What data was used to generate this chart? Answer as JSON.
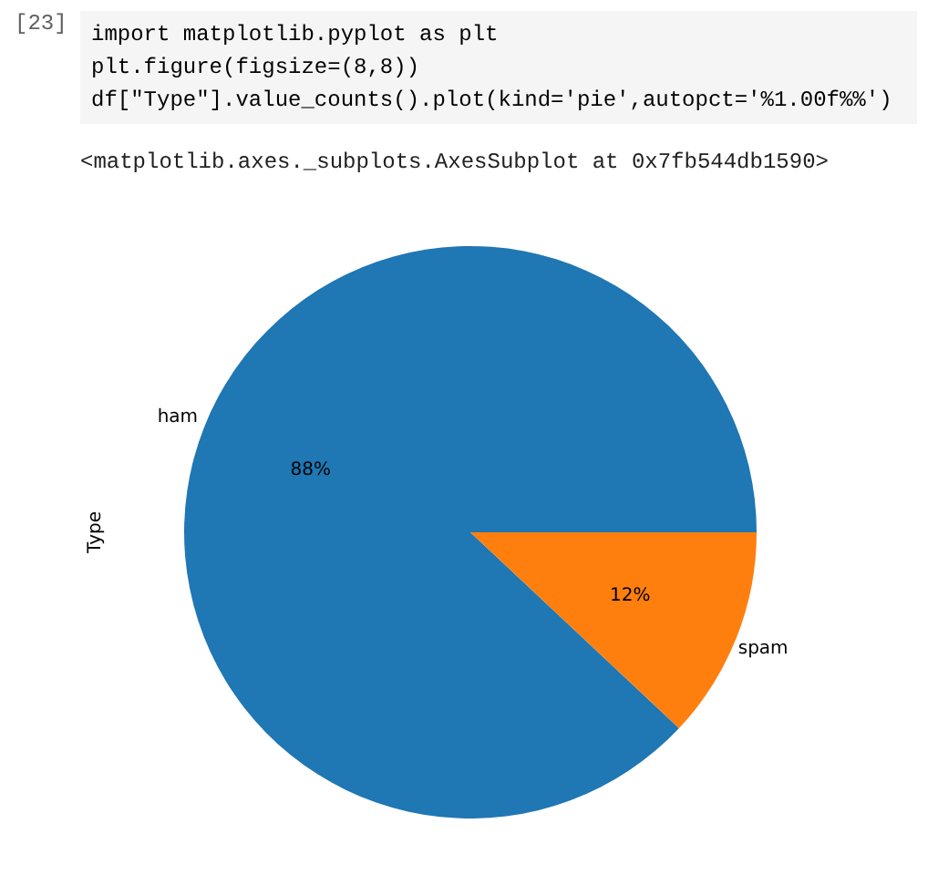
{
  "chart_data": {
    "type": "pie",
    "ylabel": "Type",
    "annotations": [
      "[23]",
      "import matplotlib.pyplot as plt",
      "plt.figure(figsize=(8,8))",
      "df[\"Type\"].value_counts().plot(kind='pie',autopct='%1.00f%%')",
      "<matplotlib.axes._subplots.AxesSubplot at 0x7fb544db1590>"
    ],
    "categories": [
      "ham",
      "spam"
    ],
    "values": [
      88,
      12
    ],
    "colors": [
      "#1f77b4",
      "#ff7f0e"
    ],
    "value_labels": [
      "88%",
      "12%"
    ]
  }
}
